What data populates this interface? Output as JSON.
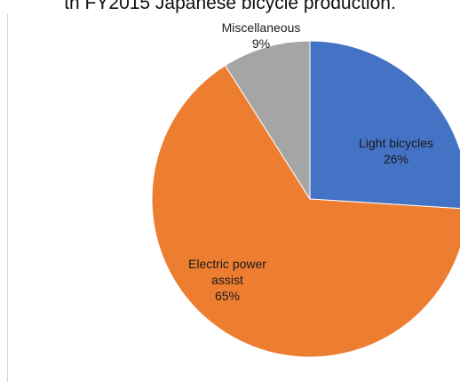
{
  "title": "th FY2015 Japanese bicycle production.",
  "chart_data": {
    "type": "pie",
    "title": "th FY2015 Japanese bicycle production.",
    "slices": [
      {
        "label": "Light bicycles",
        "value": 26,
        "value_label": "26%",
        "color": "#4472c4"
      },
      {
        "label": "Electric power assist",
        "label_lines": [
          "Electric power",
          "assist"
        ],
        "value": 65,
        "value_label": "65%",
        "color": "#ed7d31"
      },
      {
        "label": "Miscellaneous",
        "value": 9,
        "value_label": "9%",
        "color": "#a5a5a5"
      }
    ],
    "start_angle_deg": 0,
    "direction": "clockwise"
  }
}
